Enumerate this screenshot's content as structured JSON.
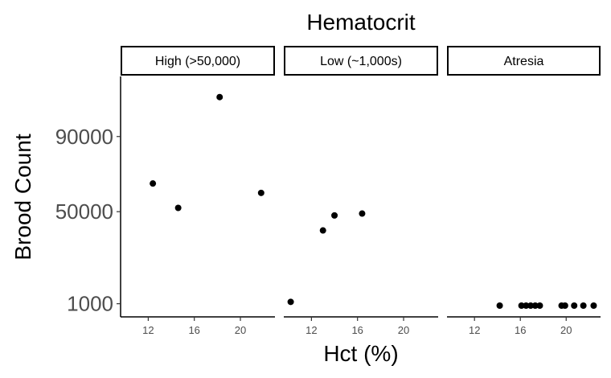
{
  "chart_data": {
    "type": "scatter",
    "title": "Hematocrit",
    "xlabel": "Hct (%)",
    "ylabel": "Brood Count",
    "facets": [
      {
        "label": "High (>50,000)",
        "points": [
          {
            "x": 12.4,
            "y": 65000
          },
          {
            "x": 14.6,
            "y": 52000
          },
          {
            "x": 18.2,
            "y": 111000
          },
          {
            "x": 21.8,
            "y": 60000
          }
        ]
      },
      {
        "label": "Low (~1,000s)",
        "points": [
          {
            "x": 10.2,
            "y": 2000
          },
          {
            "x": 13.0,
            "y": 40000
          },
          {
            "x": 14.0,
            "y": 48000
          },
          {
            "x": 16.4,
            "y": 49000
          }
        ]
      },
      {
        "label": "Atresia",
        "points": [
          {
            "x": 14.2,
            "y": 0
          },
          {
            "x": 16.1,
            "y": 0
          },
          {
            "x": 16.5,
            "y": 0
          },
          {
            "x": 16.9,
            "y": 0
          },
          {
            "x": 17.3,
            "y": 0
          },
          {
            "x": 17.7,
            "y": 0
          },
          {
            "x": 19.6,
            "y": 0
          },
          {
            "x": 19.9,
            "y": 0
          },
          {
            "x": 20.7,
            "y": 0
          },
          {
            "x": 21.5,
            "y": 0
          },
          {
            "x": 22.4,
            "y": 0
          }
        ]
      }
    ],
    "x_ticks": [
      12,
      16,
      20
    ],
    "xlim": [
      9.6,
      23.0
    ],
    "y_ticks": [
      1000,
      50000,
      90000
    ],
    "ylim": [
      -6000,
      122000
    ],
    "grid": false,
    "point_color": "#000000"
  }
}
